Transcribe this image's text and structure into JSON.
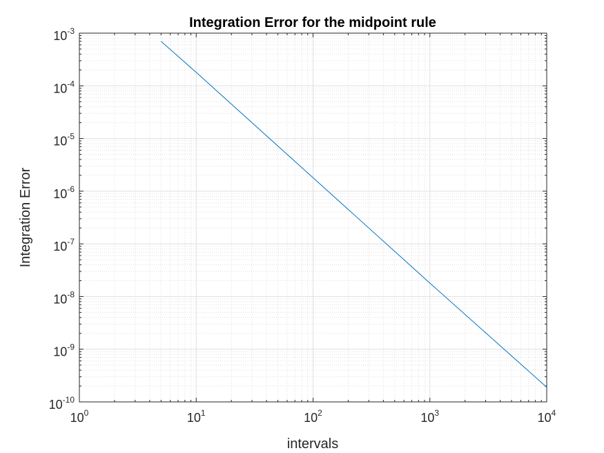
{
  "chart_data": {
    "type": "line",
    "title": "Integration Error for the midpoint rule",
    "xlabel": "intervals",
    "ylabel": "Integration Error",
    "xscale": "log",
    "yscale": "log",
    "xlim": [
      1,
      10000
    ],
    "ylim": [
      1e-10,
      0.001
    ],
    "grid": true,
    "minor_grid": true,
    "legend": "none",
    "x_ticks": [
      {
        "base": "10",
        "exp": "0",
        "value": 1
      },
      {
        "base": "10",
        "exp": "1",
        "value": 10
      },
      {
        "base": "10",
        "exp": "2",
        "value": 100
      },
      {
        "base": "10",
        "exp": "3",
        "value": 1000
      },
      {
        "base": "10",
        "exp": "4",
        "value": 10000
      }
    ],
    "y_ticks": [
      {
        "base": "10",
        "exp": "-10",
        "value": 1e-10
      },
      {
        "base": "10",
        "exp": "-9",
        "value": 1e-09
      },
      {
        "base": "10",
        "exp": "-8",
        "value": 1e-08
      },
      {
        "base": "10",
        "exp": "-7",
        "value": 1e-07
      },
      {
        "base": "10",
        "exp": "-6",
        "value": 1e-06
      },
      {
        "base": "10",
        "exp": "-5",
        "value": 1e-05
      },
      {
        "base": "10",
        "exp": "-4",
        "value": 0.0001
      },
      {
        "base": "10",
        "exp": "-3",
        "value": 0.001
      }
    ],
    "series": [
      {
        "color": "#0072bd",
        "x": [
          5,
          10,
          100,
          1000,
          10000
        ],
        "y": [
          0.0007,
          0.00018,
          1.8e-06,
          1.8e-08,
          1.9e-10
        ]
      }
    ]
  },
  "colors": {
    "axes": "#262626",
    "grid": "#dfdfdf",
    "background": "#ffffff"
  }
}
